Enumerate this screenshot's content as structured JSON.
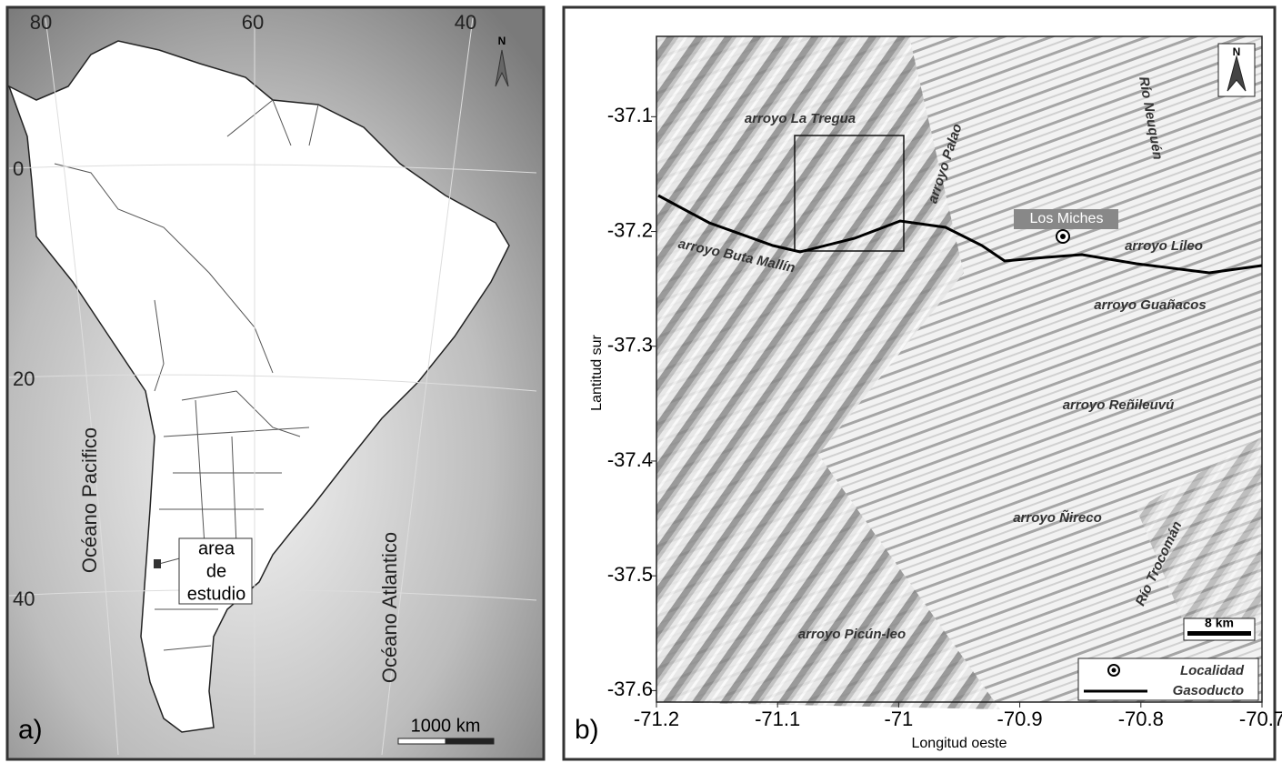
{
  "panel_a": {
    "label": "a)",
    "north": "N",
    "lon_labels": [
      80,
      60,
      40
    ],
    "lat_labels": [
      0,
      20,
      40
    ],
    "oceans": [
      "Océano Pacifico",
      "Océano Atlantico"
    ],
    "study_area": [
      "area",
      "de",
      "estudio"
    ],
    "scale": "1000 km"
  },
  "panel_b": {
    "label": "b)",
    "north": "N",
    "xlabel": "Longitud oeste",
    "ylabel": "Lantitud sur",
    "xlim": [
      -71.2,
      -70.7
    ],
    "ylim": [
      -37.61,
      -37.03
    ],
    "xticks": [
      -71.2,
      -71.1,
      -71,
      -70.9,
      -70.8,
      -70.7
    ],
    "yticks": [
      -37.1,
      -37.2,
      -37.3,
      -37.4,
      -37.5,
      -37.6
    ],
    "places": [
      "arroyo La Tregua",
      "arroyo Palao",
      "Río Neuquén",
      "Los Miches",
      "arroyo Buta Mallín",
      "arroyo Lileo",
      "arroyo Guañacos",
      "arroyo Reñileuvú",
      "arroyo Ñireco",
      "Río Trocomán",
      "arroyo Picún-leo"
    ],
    "scale": "8 km",
    "legend": [
      "Localidad",
      "Gasoducto"
    ]
  }
}
